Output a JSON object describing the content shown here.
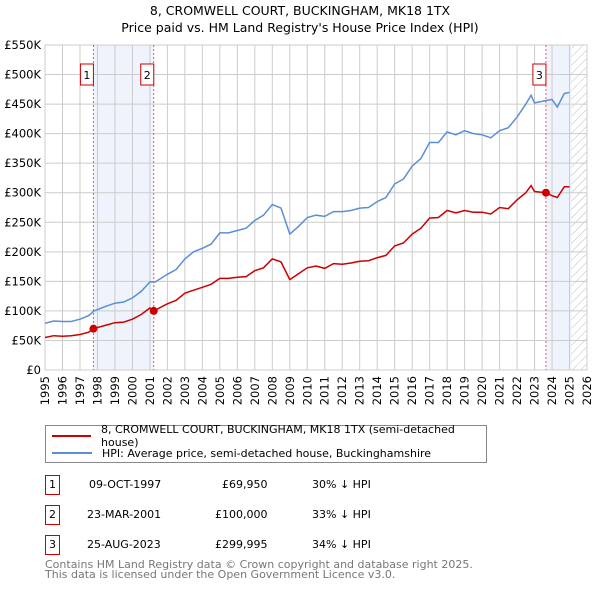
{
  "title": "8, CROMWELL COURT, BUCKINGHAM, MK18 1TX",
  "subtitle": "Price paid vs. HM Land Registry's House Price Index (HPI)",
  "legend": [
    {
      "label": "8, CROMWELL COURT, BUCKINGHAM, MK18 1TX (semi-detached house)",
      "color": "#cc0000"
    },
    {
      "label": "HPI: Average price, semi-detached house, Buckinghamshire",
      "color": "#5b8fd4"
    }
  ],
  "sales": [
    {
      "num": "1",
      "date": "09-OCT-1997",
      "price": "£69,950",
      "hpi": "30% ↓ HPI",
      "year": 1997.77,
      "value": 69950
    },
    {
      "num": "2",
      "date": "23-MAR-2001",
      "price": "£100,000",
      "hpi": "33% ↓ HPI",
      "year": 2001.22,
      "value": 100000
    },
    {
      "num": "3",
      "date": "25-AUG-2023",
      "price": "£299,995",
      "hpi": "34% ↓ HPI",
      "year": 2023.65,
      "value": 299995
    }
  ],
  "footer": [
    "Contains HM Land Registry data © Crown copyright and database right 2025.",
    "This data is licensed under the Open Government Licence v3.0."
  ],
  "chart_data": {
    "type": "line",
    "title": "8, CROMWELL COURT, BUCKINGHAM, MK18 1TX",
    "subtitle": "Price paid vs. HM Land Registry's House Price Index (HPI)",
    "xlim": [
      1995,
      2026
    ],
    "ylim": [
      0,
      550000
    ],
    "x_ticks": [
      "1995",
      "1996",
      "1997",
      "1998",
      "1999",
      "2000",
      "2001",
      "2002",
      "2003",
      "2004",
      "2005",
      "2006",
      "2007",
      "2008",
      "2009",
      "2010",
      "2011",
      "2012",
      "2013",
      "2014",
      "2015",
      "2016",
      "2017",
      "2018",
      "2019",
      "2020",
      "2021",
      "2022",
      "2023",
      "2024",
      "2025",
      "2026"
    ],
    "y_ticks": [
      {
        "v": 0,
        "l": "£0"
      },
      {
        "v": 50000,
        "l": "£50K"
      },
      {
        "v": 100000,
        "l": "£100K"
      },
      {
        "v": 150000,
        "l": "£150K"
      },
      {
        "v": 200000,
        "l": "£200K"
      },
      {
        "v": 250000,
        "l": "£250K"
      },
      {
        "v": 300000,
        "l": "£300K"
      },
      {
        "v": 350000,
        "l": "£350K"
      },
      {
        "v": 400000,
        "l": "£400K"
      },
      {
        "v": 450000,
        "l": "£450K"
      },
      {
        "v": 500000,
        "l": "£500K"
      },
      {
        "v": 550000,
        "l": "£550K"
      }
    ],
    "grid": true,
    "legend_position": "below",
    "shaded_ranges": [
      [
        1997.77,
        2001.22
      ],
      [
        2023.65,
        2025.1
      ]
    ],
    "forecast_hatch_from": 2025.1,
    "series": [
      {
        "name": "HPI: Average price, semi-detached house, Buckinghamshire",
        "color": "#5b8fd4",
        "x": [
          1995,
          1995.5,
          1996,
          1996.5,
          1997,
          1997.5,
          1997.8,
          1998.5,
          1999,
          1999.5,
          2000,
          2000.5,
          2001,
          2001.3,
          2002,
          2002.5,
          2003,
          2003.5,
          2004,
          2004.5,
          2005,
          2005.5,
          2006,
          2006.5,
          2007,
          2007.5,
          2008,
          2008.5,
          2009,
          2009.5,
          2010,
          2010.5,
          2011,
          2011.5,
          2012,
          2012.5,
          2013,
          2013.5,
          2014,
          2014.5,
          2015,
          2015.5,
          2016,
          2016.5,
          2017,
          2017.5,
          2018,
          2018.5,
          2019,
          2019.5,
          2020,
          2020.5,
          2021,
          2021.5,
          2022,
          2022.5,
          2022.8,
          2023,
          2023.5,
          2024,
          2024.3,
          2024.7,
          2025
        ],
        "y": [
          79000,
          83000,
          82000,
          82000,
          86000,
          92000,
          100000,
          108000,
          113000,
          115000,
          122000,
          133000,
          149000,
          149000,
          162000,
          170000,
          188000,
          200000,
          206000,
          213000,
          232000,
          232000,
          236000,
          240000,
          253000,
          262000,
          280000,
          274000,
          230000,
          243000,
          258000,
          262000,
          260000,
          268000,
          268000,
          270000,
          274000,
          275000,
          285000,
          292000,
          315000,
          323000,
          345000,
          358000,
          385000,
          385000,
          403000,
          398000,
          405000,
          400000,
          398000,
          393000,
          405000,
          410000,
          428000,
          450000,
          465000,
          452000,
          455000,
          458000,
          445000,
          468000,
          470000
        ]
      },
      {
        "name": "8, CROMWELL COURT, BUCKINGHAM, MK18 1TX (semi-detached house)",
        "color": "#cc0000",
        "x": [
          1995,
          1995.5,
          1996,
          1996.5,
          1997,
          1997.5,
          1997.77,
          1998.5,
          1999,
          1999.5,
          2000,
          2000.5,
          2001,
          2001.22,
          2002,
          2002.5,
          2003,
          2003.5,
          2004,
          2004.5,
          2005,
          2005.5,
          2006,
          2006.5,
          2007,
          2007.5,
          2008,
          2008.5,
          2009,
          2009.5,
          2010,
          2010.5,
          2011,
          2011.5,
          2012,
          2012.5,
          2013,
          2013.5,
          2014,
          2014.5,
          2015,
          2015.5,
          2016,
          2016.5,
          2017,
          2017.5,
          2018,
          2018.5,
          2019,
          2019.5,
          2020,
          2020.5,
          2021,
          2021.5,
          2022,
          2022.5,
          2022.8,
          2023,
          2023.65,
          2024,
          2024.3,
          2024.7,
          2025
        ],
        "y": [
          55000,
          58000,
          57000,
          58000,
          60000,
          64000,
          69950,
          76000,
          80000,
          81000,
          86000,
          94000,
          105000,
          100000,
          112000,
          118000,
          130000,
          135000,
          140000,
          145000,
          155000,
          155000,
          157000,
          158000,
          168000,
          173000,
          188000,
          183000,
          153000,
          163000,
          173000,
          176000,
          172000,
          180000,
          179000,
          181000,
          184000,
          185000,
          190000,
          194000,
          210000,
          215000,
          230000,
          240000,
          257000,
          258000,
          270000,
          266000,
          270000,
          267000,
          267000,
          264000,
          275000,
          273000,
          288000,
          300000,
          312000,
          302000,
          299995,
          295000,
          292000,
          310000,
          310000
        ]
      }
    ]
  }
}
